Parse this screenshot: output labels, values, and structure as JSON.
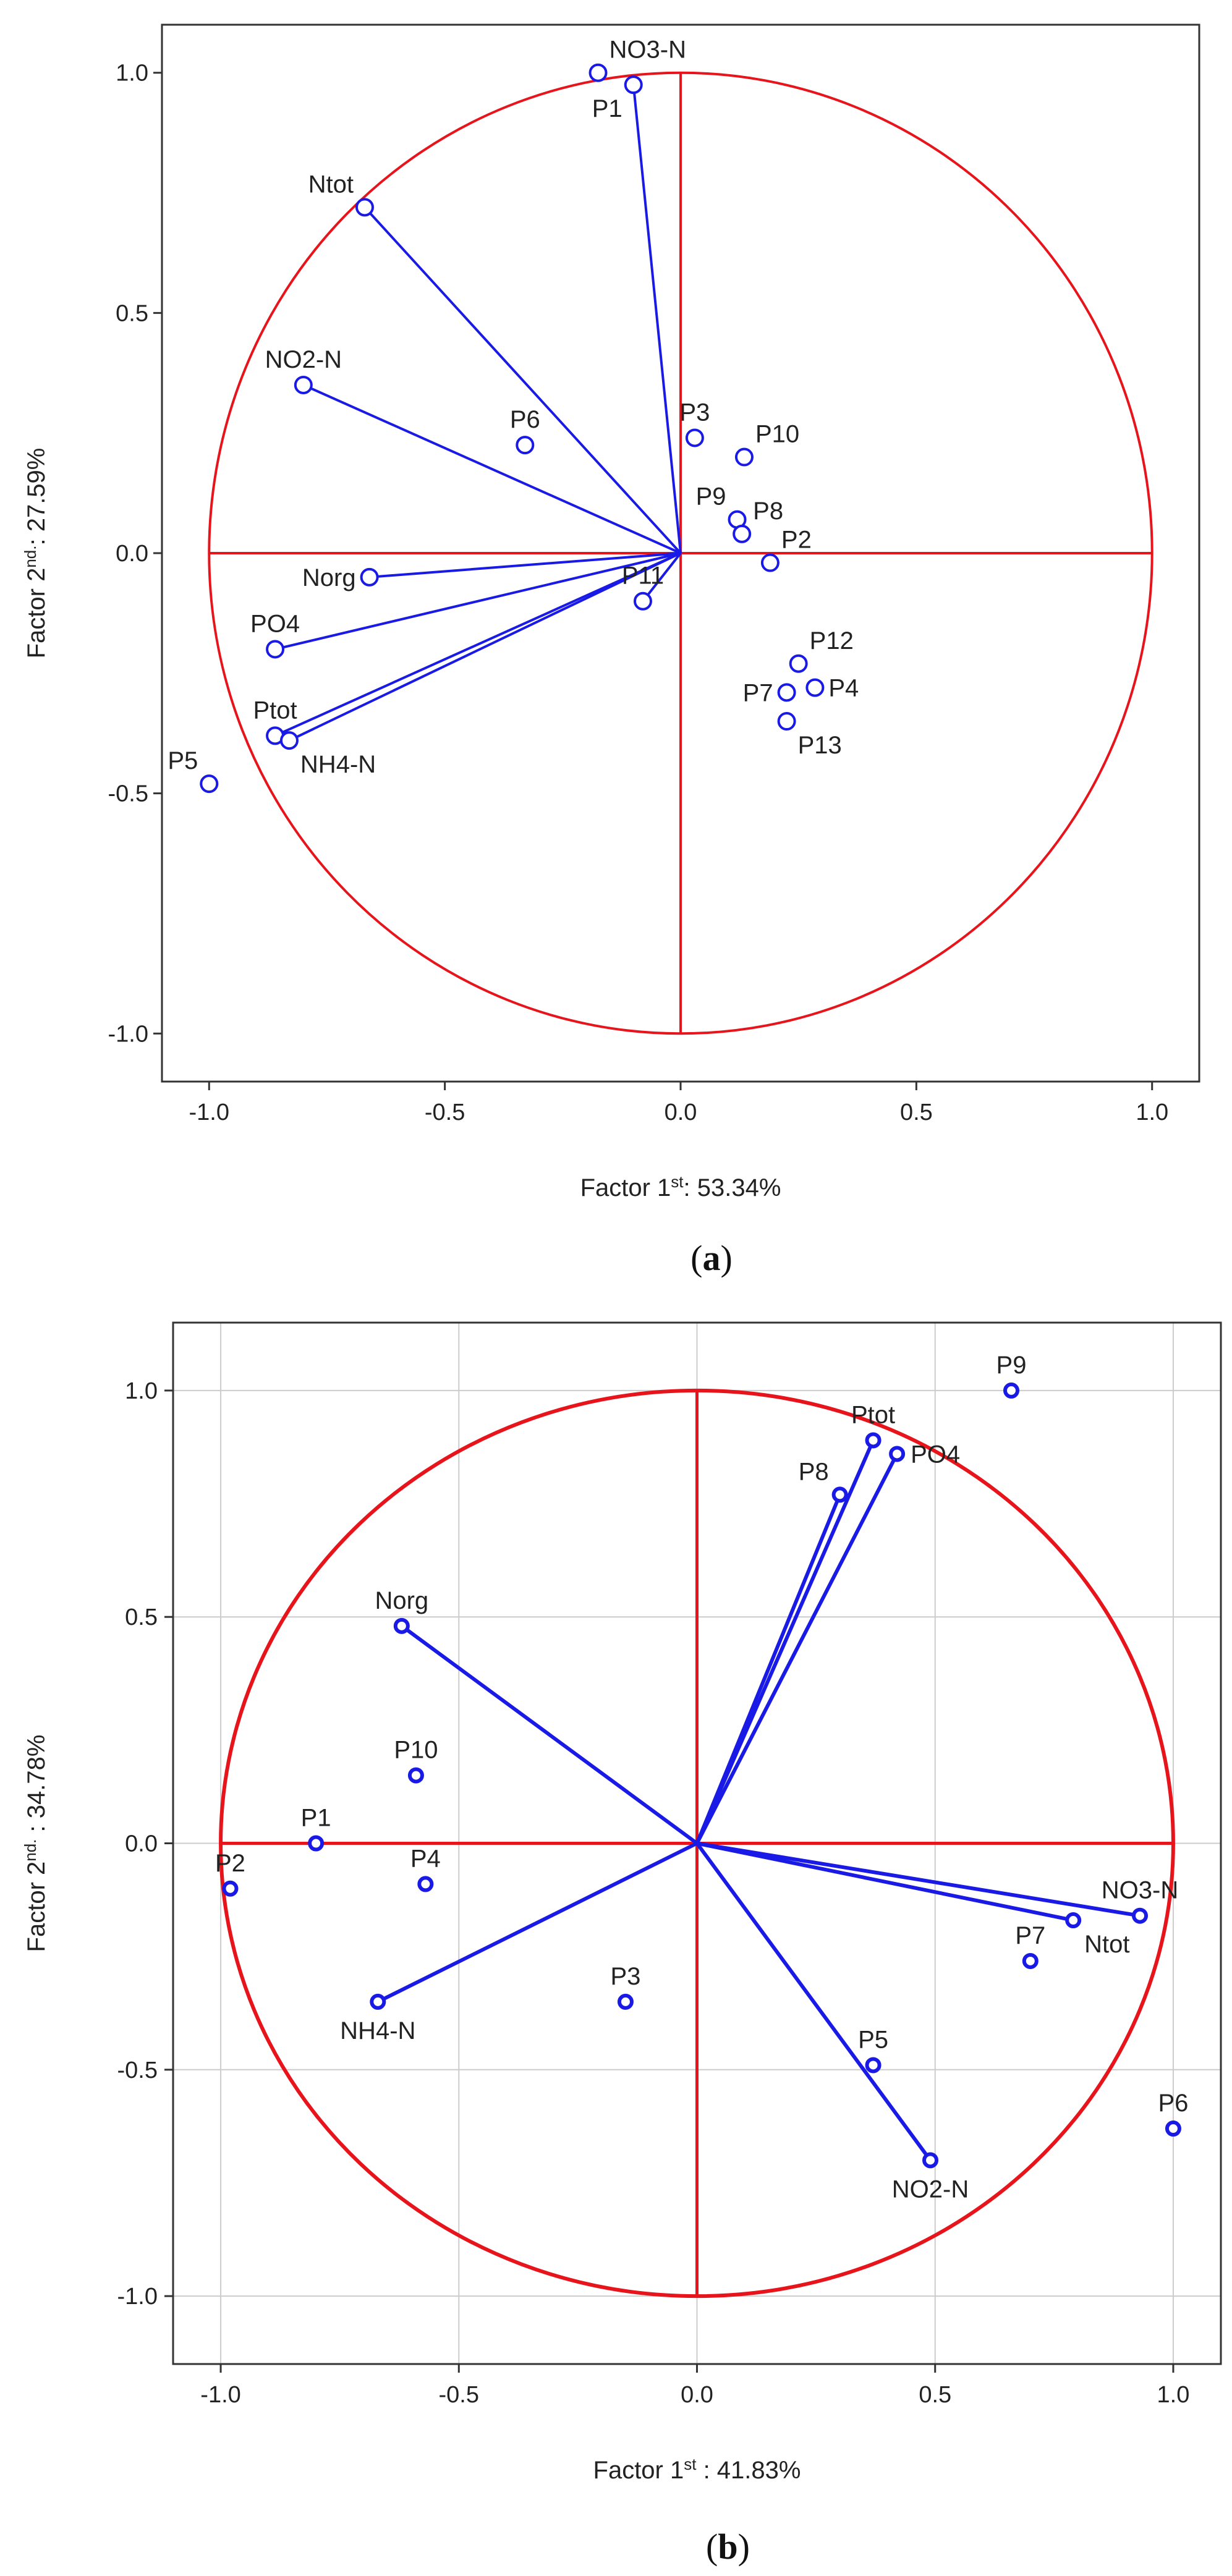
{
  "chart_data": [
    {
      "type": "scatter",
      "panel_label": "a",
      "xlabel_prefix": "Factor 1",
      "xlabel_sup": "st",
      "xlabel_suffix": ": 53.34%",
      "ylabel_prefix": "Factor 2",
      "ylabel_sup": "nd.",
      "ylabel_suffix": ": 27.59%",
      "xlim": [
        -1.1,
        1.1
      ],
      "ylim": [
        -1.1,
        1.1
      ],
      "xticks": [
        -1.0,
        -0.5,
        0.0,
        0.5,
        1.0
      ],
      "xtick_labels": [
        "-1.0",
        "-0.5",
        "0.0",
        "0.5",
        "1.0"
      ],
      "yticks": [
        -1.0,
        -0.5,
        0.0,
        0.5,
        1.0
      ],
      "ytick_labels": [
        "-1.0",
        "-0.5",
        "0.0",
        "0.5",
        "1.0"
      ],
      "grid": false,
      "unit_circle": true,
      "points": [
        {
          "label": "NO3-N",
          "x": -0.175,
          "y": 1.0,
          "vector": false,
          "anchor": "ne"
        },
        {
          "label": "P1",
          "x": -0.1,
          "y": 0.975,
          "vector": true,
          "anchor": "sw"
        },
        {
          "label": "Ntot",
          "x": -0.67,
          "y": 0.72,
          "vector": true,
          "anchor": "nw"
        },
        {
          "label": "NO2-N",
          "x": -0.8,
          "y": 0.35,
          "vector": true,
          "anchor": "n"
        },
        {
          "label": "P6",
          "x": -0.33,
          "y": 0.225,
          "vector": false,
          "anchor": "n"
        },
        {
          "label": "P3",
          "x": 0.03,
          "y": 0.24,
          "vector": false,
          "anchor": "n"
        },
        {
          "label": "P10",
          "x": 0.135,
          "y": 0.2,
          "vector": false,
          "anchor": "ne"
        },
        {
          "label": "P9",
          "x": 0.12,
          "y": 0.07,
          "vector": false,
          "anchor": "nw"
        },
        {
          "label": "P8",
          "x": 0.13,
          "y": 0.04,
          "vector": false,
          "anchor": "ne"
        },
        {
          "label": "P2",
          "x": 0.19,
          "y": -0.02,
          "vector": false,
          "anchor": "ne"
        },
        {
          "label": "Norg",
          "x": -0.66,
          "y": -0.05,
          "vector": true,
          "anchor": "w"
        },
        {
          "label": "P11",
          "x": -0.08,
          "y": -0.1,
          "vector": true,
          "anchor": "n"
        },
        {
          "label": "PO4",
          "x": -0.86,
          "y": -0.2,
          "vector": true,
          "anchor": "n"
        },
        {
          "label": "P12",
          "x": 0.25,
          "y": -0.23,
          "vector": false,
          "anchor": "ne"
        },
        {
          "label": "P7",
          "x": 0.225,
          "y": -0.29,
          "vector": false,
          "anchor": "w"
        },
        {
          "label": "P4",
          "x": 0.285,
          "y": -0.28,
          "vector": false,
          "anchor": "e"
        },
        {
          "label": "P13",
          "x": 0.225,
          "y": -0.35,
          "vector": false,
          "anchor": "se"
        },
        {
          "label": "Ptot",
          "x": -0.86,
          "y": -0.38,
          "vector": true,
          "anchor": "n"
        },
        {
          "label": "NH4-N",
          "x": -0.83,
          "y": -0.39,
          "vector": true,
          "anchor": "se"
        },
        {
          "label": "P5",
          "x": -1.0,
          "y": -0.48,
          "vector": false,
          "anchor": "nw"
        }
      ]
    },
    {
      "type": "scatter",
      "panel_label": "b",
      "xlabel_prefix": "Factor 1",
      "xlabel_sup": "st",
      "xlabel_suffix": " : 41.83%",
      "ylabel_prefix": "Factor 2",
      "ylabel_sup": "nd.",
      "ylabel_suffix": " : 34.78%",
      "xlim": [
        -1.1,
        1.1
      ],
      "ylim": [
        -1.15,
        1.15
      ],
      "xticks": [
        -1.0,
        -0.5,
        0.0,
        0.5,
        1.0
      ],
      "xtick_labels": [
        "-1.0",
        "-0.5",
        "0.0",
        "0.5",
        "1.0"
      ],
      "yticks": [
        -1.0,
        -0.5,
        0.0,
        0.5,
        1.0
      ],
      "ytick_labels": [
        "-1.0",
        "-0.5",
        "0.0",
        "0.5",
        "1.0"
      ],
      "grid": true,
      "unit_circle": true,
      "points": [
        {
          "label": "P9",
          "x": 0.66,
          "y": 1.0,
          "vector": false,
          "anchor": "n"
        },
        {
          "label": "Ptot",
          "x": 0.37,
          "y": 0.89,
          "vector": true,
          "anchor": "n"
        },
        {
          "label": "PO4",
          "x": 0.42,
          "y": 0.86,
          "vector": true,
          "anchor": "e"
        },
        {
          "label": "P8",
          "x": 0.3,
          "y": 0.77,
          "vector": true,
          "anchor": "nw"
        },
        {
          "label": "Norg",
          "x": -0.62,
          "y": 0.48,
          "vector": true,
          "anchor": "n"
        },
        {
          "label": "P10",
          "x": -0.59,
          "y": 0.15,
          "vector": false,
          "anchor": "n"
        },
        {
          "label": "P1",
          "x": -0.8,
          "y": 0.0,
          "vector": false,
          "anchor": "n"
        },
        {
          "label": "P2",
          "x": -0.98,
          "y": -0.1,
          "vector": false,
          "anchor": "n"
        },
        {
          "label": "P4",
          "x": -0.57,
          "y": -0.09,
          "vector": false,
          "anchor": "n"
        },
        {
          "label": "NH4-N",
          "x": -0.67,
          "y": -0.35,
          "vector": true,
          "anchor": "s"
        },
        {
          "label": "P3",
          "x": -0.15,
          "y": -0.35,
          "vector": false,
          "anchor": "n"
        },
        {
          "label": "NO3-N",
          "x": 0.93,
          "y": -0.16,
          "vector": true,
          "anchor": "n"
        },
        {
          "label": "Ntot",
          "x": 0.79,
          "y": -0.17,
          "vector": true,
          "anchor": "se"
        },
        {
          "label": "P7",
          "x": 0.7,
          "y": -0.26,
          "vector": false,
          "anchor": "n"
        },
        {
          "label": "P5",
          "x": 0.37,
          "y": -0.49,
          "vector": false,
          "anchor": "n"
        },
        {
          "label": "NO2-N",
          "x": 0.49,
          "y": -0.7,
          "vector": true,
          "anchor": "s"
        },
        {
          "label": "P6",
          "x": 1.0,
          "y": -0.63,
          "vector": false,
          "anchor": "n"
        }
      ]
    }
  ]
}
